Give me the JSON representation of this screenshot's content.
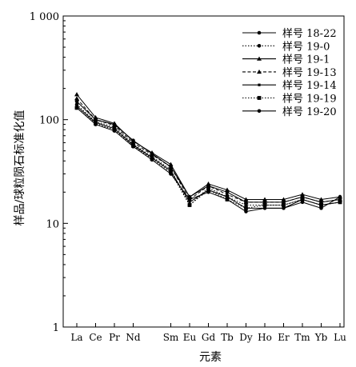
{
  "chart_data": {
    "type": "line",
    "title": "",
    "xlabel": "元素",
    "ylabel": "样品/球粒陨石标准化值",
    "y_scale": "log",
    "ylim": [
      1,
      1000
    ],
    "y_ticks": [
      {
        "value": 1,
        "label": "1"
      },
      {
        "value": 10,
        "label": "10"
      },
      {
        "value": 100,
        "label": "100"
      },
      {
        "value": 1000,
        "label": "1 000"
      }
    ],
    "categories": [
      "La",
      "Ce",
      "Pr",
      "Nd",
      "Sm",
      "Eu",
      "Gd",
      "Tb",
      "Dy",
      "Ho",
      "Er",
      "Tm",
      "Yb",
      "Lu"
    ],
    "x_positions": [
      0,
      1,
      2,
      3,
      5,
      6,
      7,
      8,
      9,
      10,
      11,
      12,
      13,
      14
    ],
    "grid": false,
    "legend_position": "top-right",
    "series": [
      {
        "name": "样号 18-22",
        "dash": "solid",
        "marker": "circle-filled",
        "x": [
          0,
          1,
          2,
          3,
          4,
          5,
          6,
          7,
          8,
          9,
          10,
          11,
          12,
          13,
          14
        ],
        "values": [
          150,
          100,
          90,
          63,
          47,
          35,
          18,
          23,
          20,
          16,
          16,
          16,
          18,
          16,
          17
        ]
      },
      {
        "name": "样号 19-0",
        "dash": "dotted",
        "marker": "circle-filled",
        "x": [
          0,
          1,
          2,
          3,
          4,
          5,
          6,
          7,
          8,
          9,
          10,
          11,
          12,
          13,
          14
        ],
        "values": [
          140,
          96,
          85,
          58,
          44,
          33,
          15,
          22,
          18,
          15,
          15,
          15,
          17,
          15,
          16
        ]
      },
      {
        "name": "样号 19-1",
        "dash": "solid",
        "marker": "triangle",
        "x": [
          0,
          1,
          2,
          3,
          4,
          5,
          6,
          7,
          8,
          9,
          10,
          11,
          12,
          13,
          14
        ],
        "values": [
          175,
          105,
          92,
          62,
          48,
          37,
          18,
          24,
          21,
          17,
          17,
          17,
          19,
          17,
          18
        ]
      },
      {
        "name": "样号 19-13",
        "dash": "dashed",
        "marker": "triangle",
        "x": [
          0,
          1,
          2,
          3,
          4,
          5,
          6,
          7,
          8,
          9,
          10,
          11,
          12,
          13,
          14
        ],
        "values": [
          160,
          100,
          88,
          60,
          46,
          35,
          17,
          23,
          19,
          16,
          16,
          16,
          18,
          16,
          17
        ]
      },
      {
        "name": "样号 19-14",
        "dash": "solid",
        "marker": "square-small",
        "x": [
          0,
          1,
          2,
          3,
          4,
          5,
          6,
          7,
          8,
          9,
          10,
          11,
          12,
          13,
          14
        ],
        "values": [
          135,
          94,
          82,
          57,
          43,
          32,
          16,
          21,
          18,
          14,
          14,
          14,
          17,
          15,
          16
        ]
      },
      {
        "name": "样号 19-19",
        "dash": "dotted",
        "marker": "square",
        "x": [
          0,
          1,
          2,
          3,
          4,
          5,
          6,
          7,
          8,
          9,
          10,
          11,
          12,
          13,
          14
        ],
        "values": [
          130,
          92,
          80,
          56,
          42,
          31,
          15,
          21,
          17,
          14,
          15,
          15,
          17,
          15,
          16
        ]
      },
      {
        "name": "样号 19-20",
        "dash": "solid",
        "marker": "circle-filled",
        "x": [
          0,
          1,
          2,
          3,
          4,
          5,
          6,
          7,
          8,
          9,
          10,
          11,
          12,
          13,
          14
        ],
        "values": [
          130,
          90,
          78,
          55,
          41,
          30,
          17,
          20,
          17,
          13,
          14,
          14,
          16,
          14,
          18
        ]
      }
    ]
  }
}
